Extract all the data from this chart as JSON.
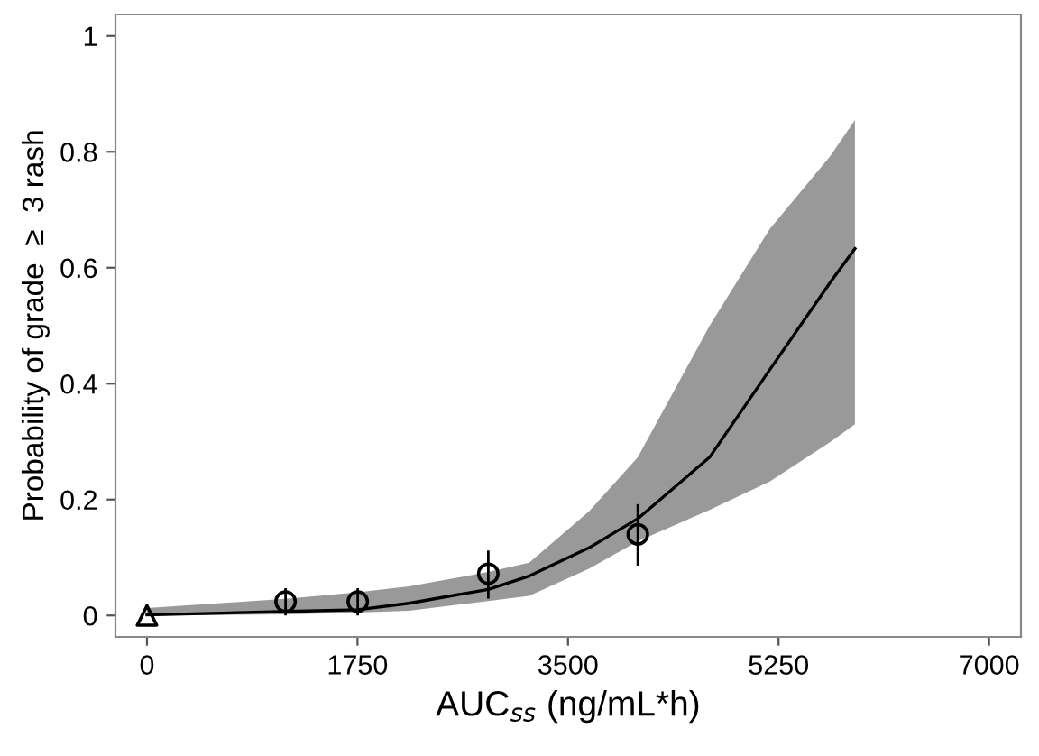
{
  "chart_data": {
    "type": "line",
    "xlabel": "AUC$_{ss}$ (ng/mL*h)",
    "ylabel": "Probability of grade  ≥  3 rash",
    "xlim": [
      -262,
      7265
    ],
    "ylim": [
      -0.037,
      1.037
    ],
    "xticks": [
      0,
      1750,
      3500,
      5250,
      7000
    ],
    "yticks": [
      0,
      0.2,
      0.4,
      0.6,
      0.8,
      1
    ],
    "grid": false,
    "legend": false,
    "series": [
      {
        "color": "#000000",
        "marker": "none",
        "line_style": "solid",
        "x": [
          0,
          1177,
          1752,
          2177,
          2837,
          3177,
          3677,
          4080,
          4677,
          5177,
          5677,
          5885
        ],
        "values": [
          0.001,
          0.007,
          0.01,
          0.021,
          0.045,
          0.068,
          0.117,
          0.167,
          0.273,
          0.424,
          0.574,
          0.633
        ],
        "lower": [
          0.0,
          0.002,
          0.005,
          0.008,
          0.025,
          0.034,
          0.081,
          0.128,
          0.182,
          0.231,
          0.299,
          0.33
        ],
        "upper": [
          0.013,
          0.029,
          0.04,
          0.05,
          0.075,
          0.091,
          0.18,
          0.273,
          0.5,
          0.667,
          0.792,
          0.855
        ]
      },
      {
        "type": "scatter",
        "color": "#000000",
        "marker": "circle",
        "x": [
          1152,
          1752,
          2837,
          4080
        ],
        "values": [
          0.024,
          0.024,
          0.072,
          0.14
        ],
        "errors": [
          [
            0.0,
            0.047
          ],
          [
            0.0,
            0.047
          ],
          [
            0.029,
            0.112
          ],
          [
            0.086,
            0.192
          ]
        ]
      },
      {
        "type": "scatter",
        "color": "#000000",
        "marker": "triangle",
        "x": [
          0
        ],
        "values": [
          0
        ]
      }
    ]
  }
}
